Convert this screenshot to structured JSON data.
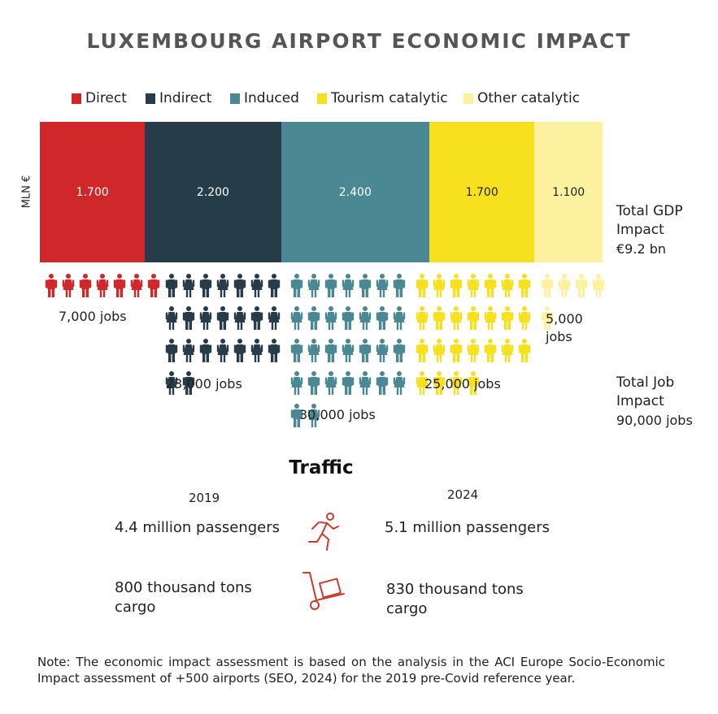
{
  "title": "LUXEMBOURG AIRPORT ECONOMIC IMPACT",
  "colors": {
    "direct": "#d0282a",
    "indirect": "#263c48",
    "induced": "#4a8894",
    "tourism": "#f7e01e",
    "other": "#fbf19e",
    "accent_red": "#c93b2f"
  },
  "chart_data": {
    "type": "bar",
    "stacked": "horizontal-100",
    "categories": [
      "Direct",
      "Indirect",
      "Induced",
      "Tourism catalytic",
      "Other catalytic"
    ],
    "series": [
      {
        "name": "Direct",
        "value": 1700,
        "label": "1.700",
        "jobs": 7000,
        "jobs_label": "7,000 jobs"
      },
      {
        "name": "Indirect",
        "value": 2200,
        "label": "2.200",
        "jobs": 23000,
        "jobs_label": "23,000 jobs"
      },
      {
        "name": "Induced",
        "value": 2400,
        "label": "2.400",
        "jobs": 30000,
        "jobs_label": "30,000 jobs"
      },
      {
        "name": "Tourism catalytic",
        "value": 1700,
        "label": "1.700",
        "jobs": 25000,
        "jobs_label": "25,000 jobs"
      },
      {
        "name": "Other catalytic",
        "value": 1100,
        "label": "1.100",
        "jobs": 5000,
        "jobs_label_line1": "5,000",
        "jobs_label_line2": "jobs"
      }
    ],
    "ylabel": "MLN €",
    "legend": "top"
  },
  "totals": {
    "gdp_line1": "Total GDP",
    "gdp_line2": "Impact",
    "gdp_line3": "€9.2 bn",
    "jobs_line1": "Total Job",
    "jobs_line2": "Impact",
    "jobs_line3": "90,000 jobs"
  },
  "traffic": {
    "title": "Traffic",
    "year_a": "2019",
    "year_b": "2024",
    "passengers_a": "4.4 million passengers",
    "passengers_b": "5.1 million passengers",
    "cargo_a_line1": "800 thousand tons",
    "cargo_a_line2": "cargo",
    "cargo_b_line1": "830 thousand tons",
    "cargo_b_line2": "cargo",
    "passenger_icon": "running-person-icon",
    "cargo_icon": "hand-truck-icon"
  },
  "note": "Note: The economic impact assessment is based on the analysis in the ACI Europe Socio-Economic Impact assessment of +500 airports (SEO, 2024) for the 2019 pre-Covid reference year."
}
